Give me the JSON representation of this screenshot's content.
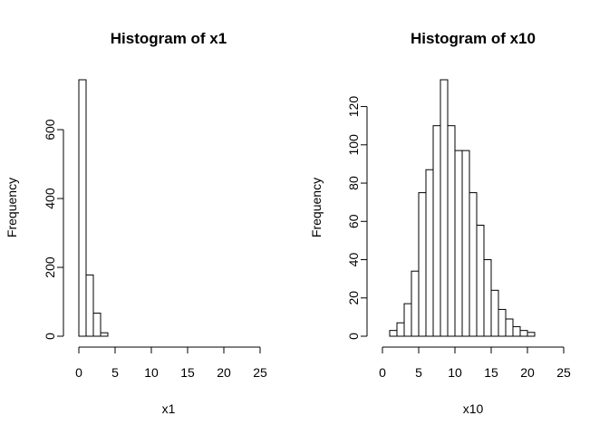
{
  "chart_data": [
    {
      "type": "bar",
      "title": "Histogram of x1",
      "xlabel": "x1",
      "ylabel": "Frequency",
      "bin_width": 1,
      "bin_starts": [
        0,
        1,
        2,
        3,
        4,
        5,
        6,
        7,
        8,
        9,
        10,
        11,
        12,
        13,
        14,
        15,
        16,
        17,
        18,
        19,
        20,
        21,
        22,
        23,
        24
      ],
      "values": [
        745,
        178,
        67,
        10,
        0,
        0,
        0,
        0,
        0,
        0,
        0,
        0,
        0,
        0,
        0,
        0,
        0,
        0,
        0,
        0,
        0,
        0,
        0,
        0,
        0
      ],
      "xlim": [
        0,
        25
      ],
      "ylim": [
        0,
        745
      ],
      "xticks": [
        0,
        5,
        10,
        15,
        20,
        25
      ],
      "yticks": [
        0,
        200,
        400,
        600
      ],
      "grid": false
    },
    {
      "type": "bar",
      "title": "Histogram of x10",
      "xlabel": "x10",
      "ylabel": "Frequency",
      "bin_width": 1,
      "bin_starts": [
        0,
        1,
        2,
        3,
        4,
        5,
        6,
        7,
        8,
        9,
        10,
        11,
        12,
        13,
        14,
        15,
        16,
        17,
        18,
        19,
        20,
        21,
        22,
        23,
        24
      ],
      "values": [
        0,
        3,
        7,
        17,
        34,
        75,
        87,
        110,
        134,
        110,
        97,
        97,
        75,
        58,
        40,
        24,
        14,
        9,
        5,
        3,
        2,
        0,
        0,
        0,
        0
      ],
      "xlim": [
        0,
        25
      ],
      "ylim": [
        0,
        134
      ],
      "xticks": [
        0,
        5,
        10,
        15,
        20,
        25
      ],
      "yticks": [
        0,
        20,
        40,
        60,
        80,
        100,
        120
      ],
      "grid": false
    }
  ]
}
